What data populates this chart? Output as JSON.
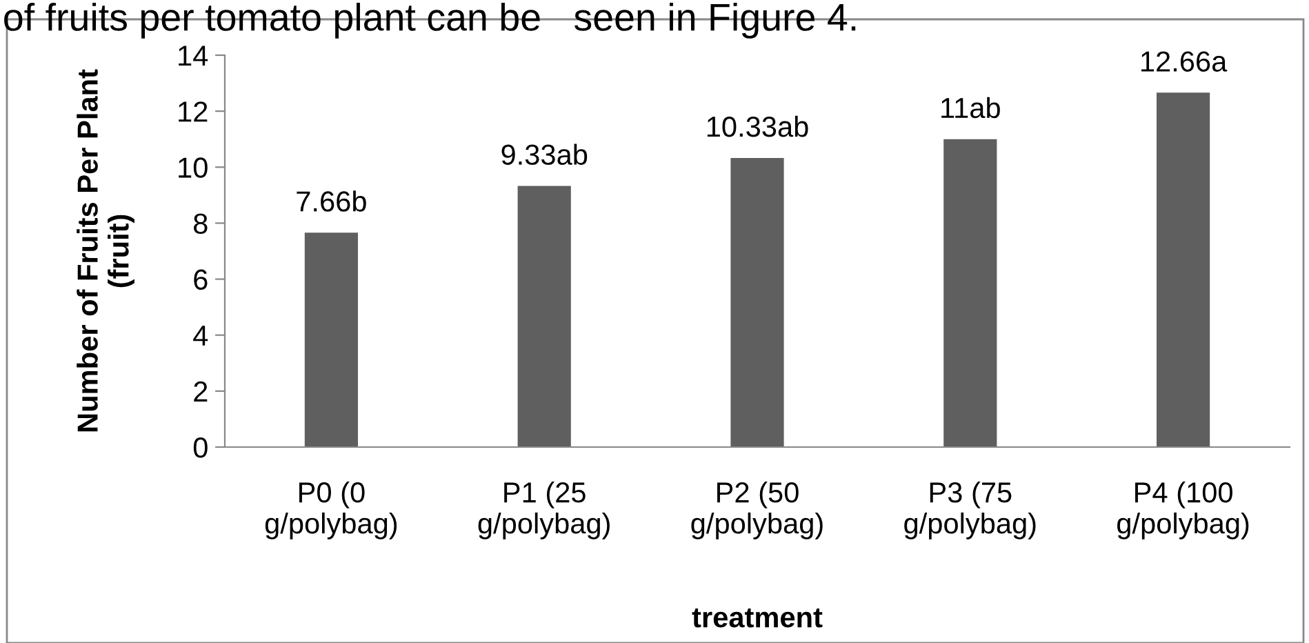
{
  "chart_data": {
    "type": "bar",
    "categories": [
      "P0 (0\ng/polybag)",
      "P1 (25\ng/polybag)",
      "P2 (50\ng/polybag)",
      "P3 (75\ng/polybag)",
      "P4 (100\ng/polybag)"
    ],
    "values": [
      7.66,
      9.33,
      10.33,
      11,
      12.66
    ],
    "value_labels": [
      "7.66b",
      "9.33ab",
      "10.33ab",
      "11ab",
      "12.66a"
    ],
    "color": "#5f5f5f",
    "xlabel": "treatment",
    "ylabel": "Number of Fruits Per Plant\n(fruit)",
    "ylim": [
      0,
      14
    ],
    "yticks": [
      0,
      2,
      4,
      6,
      8,
      10,
      12,
      14
    ],
    "grid": false,
    "legend": false,
    "annotations": [
      "of fruits per tomato plant can be   seen in Figure 4."
    ]
  }
}
